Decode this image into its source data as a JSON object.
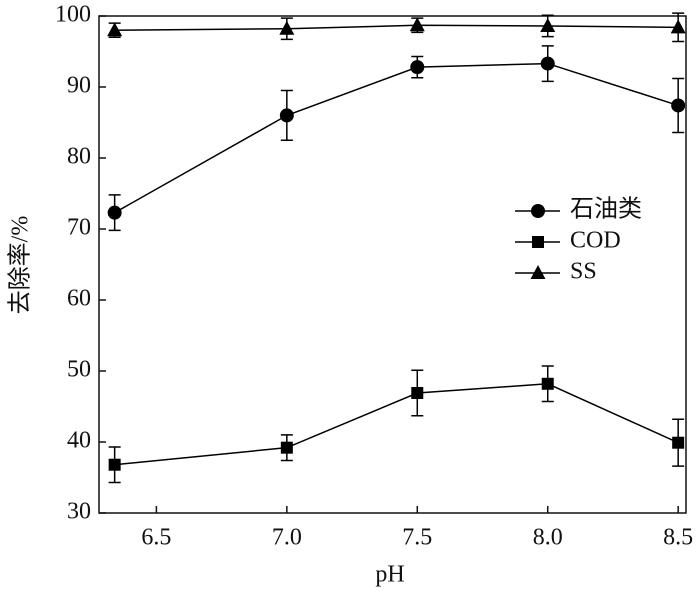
{
  "chart_data": {
    "type": "line",
    "x_label": "pH",
    "y_label": "去除率/%",
    "x": [
      6.34,
      7.0,
      7.5,
      8.0,
      8.5
    ],
    "series": [
      {
        "name": "石油类",
        "color": "#000000",
        "marker": "circle",
        "values": [
          72.3,
          86.0,
          92.8,
          93.3,
          87.4
        ],
        "errors": [
          2.5,
          3.5,
          1.5,
          2.5,
          3.8
        ]
      },
      {
        "name": "COD",
        "color": "#000000",
        "marker": "square",
        "values": [
          36.8,
          39.2,
          46.9,
          48.2,
          39.9
        ],
        "errors": [
          2.5,
          1.8,
          3.2,
          2.5,
          3.3
        ]
      },
      {
        "name": "SS",
        "color": "#000000",
        "marker": "triangle",
        "values": [
          98.0,
          98.2,
          98.7,
          98.6,
          98.4
        ],
        "errors": [
          1.0,
          1.5,
          1.0,
          1.5,
          2.0
        ]
      }
    ],
    "xlim": [
      6.28,
      8.53
    ],
    "ylim": [
      30,
      100
    ],
    "xticks": [
      6.5,
      {
        "value": 7,
        "label": "7.0"
      },
      7.5,
      {
        "value": 8,
        "label": "8.0"
      },
      8.5
    ],
    "yticks": [
      30,
      40,
      50,
      60,
      70,
      80,
      90,
      100
    ],
    "grid": false,
    "legend": "right"
  }
}
